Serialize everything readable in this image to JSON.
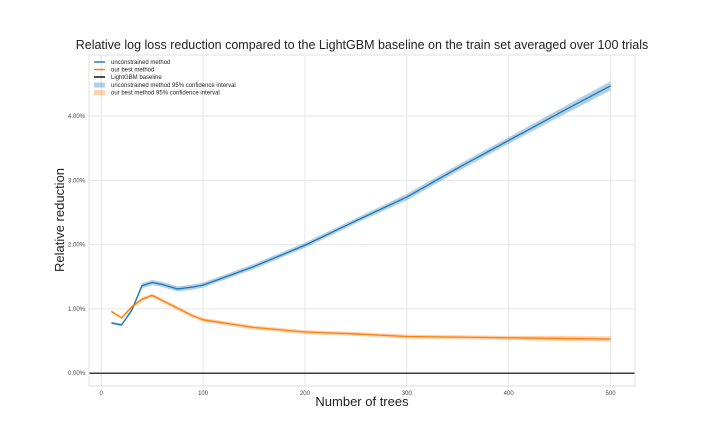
{
  "chart_data": {
    "type": "line",
    "title": "Relative log loss reduction compared to the LightGBM baseline on the train set averaged over 100 trials",
    "xlabel": "Number of trees",
    "ylabel": "Relative reduction",
    "xlim": [
      -12,
      524
    ],
    "ylim": [
      -0.002,
      0.0495
    ],
    "xticks": [
      0,
      100,
      200,
      300,
      400,
      500
    ],
    "xtick_labels": [
      "0",
      "100",
      "200",
      "300",
      "400",
      "500"
    ],
    "yticks": [
      0.0,
      0.01,
      0.02,
      0.03,
      0.04
    ],
    "ytick_labels": [
      "0.00%",
      "1.00%",
      "2.00%",
      "3.00%",
      "4.00%"
    ],
    "grid": true,
    "legend_position": "top-left",
    "series": [
      {
        "name": "unconstrained method",
        "color": "#1f77b4",
        "ci_name": "unconstrained method 95% confidence interval",
        "ci_color": "#1f77b4",
        "x": [
          10,
          20,
          30,
          40,
          50,
          60,
          75,
          90,
          100,
          150,
          200,
          250,
          300,
          350,
          400,
          450,
          500
        ],
        "y": [
          0.0078,
          0.0075,
          0.0098,
          0.0136,
          0.0141,
          0.0138,
          0.0131,
          0.0134,
          0.0137,
          0.0166,
          0.0199,
          0.0237,
          0.0274,
          0.0319,
          0.0362,
          0.0405,
          0.0447
        ],
        "ci": [
          0.0002,
          0.0002,
          0.0003,
          0.0004,
          0.0004,
          0.0004,
          0.0004,
          0.0004,
          0.0004,
          0.0004,
          0.0004,
          0.0004,
          0.0005,
          0.0005,
          0.0005,
          0.0006,
          0.0007
        ]
      },
      {
        "name": "our best method",
        "color": "#ff7f0e",
        "ci_name": "our best method 95% confidence interval",
        "ci_color": "#ff7f0e",
        "x": [
          10,
          20,
          30,
          40,
          50,
          60,
          75,
          90,
          100,
          150,
          200,
          250,
          300,
          350,
          400,
          450,
          500
        ],
        "y": [
          0.0096,
          0.0086,
          0.0103,
          0.0115,
          0.0121,
          0.0113,
          0.0101,
          0.0089,
          0.0083,
          0.0071,
          0.0064,
          0.0061,
          0.0057,
          0.0056,
          0.0055,
          0.0054,
          0.0053
        ],
        "ci": [
          0.0002,
          0.0002,
          0.0003,
          0.0003,
          0.0003,
          0.0003,
          0.0003,
          0.0003,
          0.0003,
          0.0003,
          0.0003,
          0.0003,
          0.0003,
          0.0003,
          0.0003,
          0.0004,
          0.0004
        ]
      },
      {
        "name": "LightGBM baseline",
        "color": "#000000",
        "y": 0.0
      }
    ]
  }
}
